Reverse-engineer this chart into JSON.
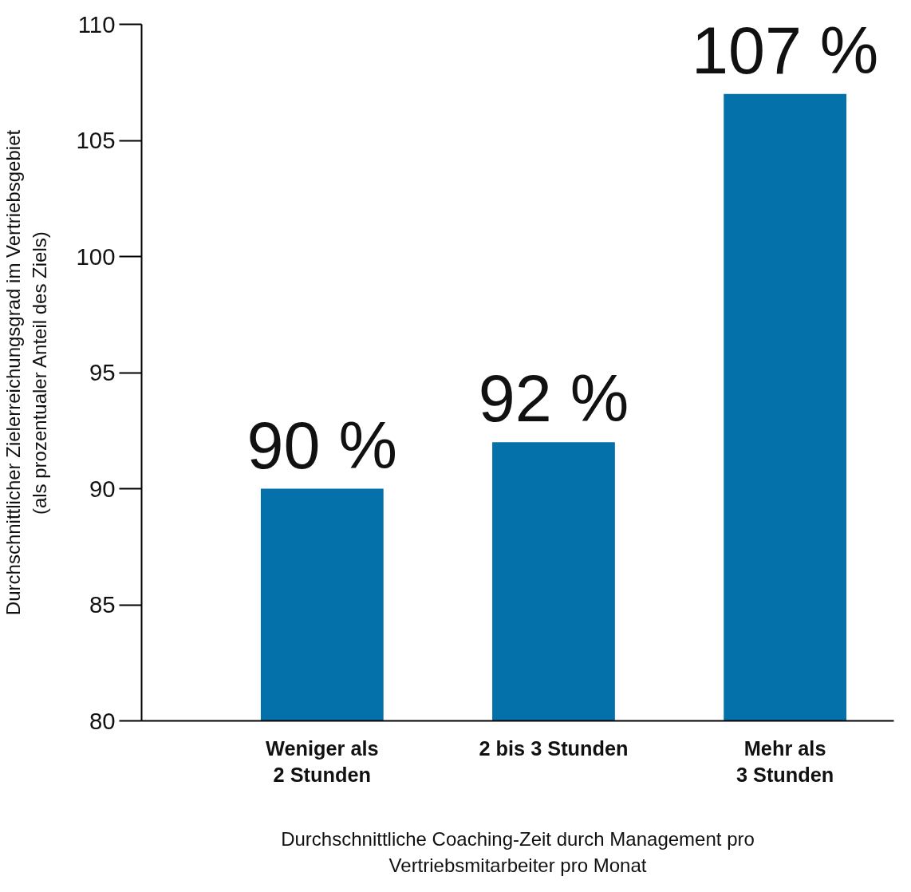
{
  "chart_data": {
    "type": "bar",
    "categories": [
      "Weniger als\n2 Stunden",
      "2 bis 3 Stunden",
      "Mehr als\n3 Stunden"
    ],
    "values": [
      90,
      92,
      107
    ],
    "value_labels": [
      "90 %",
      "92 %",
      "107 %"
    ],
    "color": "#0571ab",
    "ylim": [
      80,
      110
    ],
    "yticks": [
      80,
      85,
      90,
      95,
      100,
      105,
      110
    ],
    "xlabel": "Durchschnittliche Coaching-Zeit durch Management pro\nVertriebsmitarbeiter pro Monat",
    "ylabel": "Durchschnittlicher Zielerreichungsgrad im Vertriebsgebiet\n(als prozentualer Anteil des Ziels)",
    "grid": false
  }
}
